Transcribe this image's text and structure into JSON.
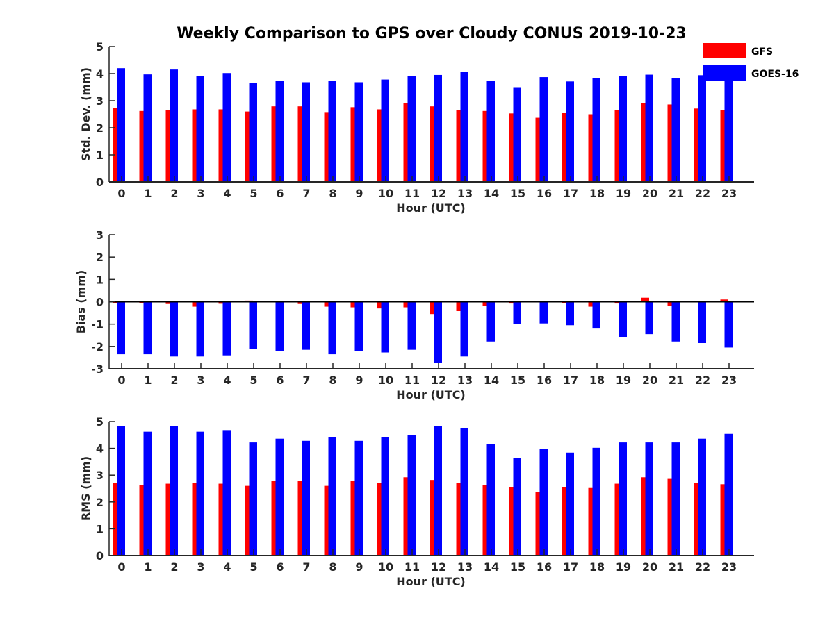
{
  "title": "Weekly Comparison to GPS over Cloudy CONUS 2019-10-23",
  "colors": {
    "GFS": "#ff0000",
    "GOES-16": "#0000ff",
    "axis": "#262626"
  },
  "legend": {
    "placement": "top-right",
    "items": [
      "GFS",
      "GOES-16"
    ]
  },
  "chart_data": [
    {
      "type": "bar",
      "title": "Weekly Comparison to GPS over Cloudy CONUS 2019-10-23",
      "xlabel": "Hour (UTC)",
      "ylabel": "Std. Dev. (mm)",
      "ylim": [
        0,
        5
      ],
      "yticks": [
        0,
        1,
        2,
        3,
        4,
        5
      ],
      "zero_line": false,
      "categories": [
        "0",
        "1",
        "2",
        "3",
        "4",
        "5",
        "6",
        "7",
        "8",
        "9",
        "10",
        "11",
        "12",
        "13",
        "14",
        "15",
        "16",
        "17",
        "18",
        "19",
        "20",
        "21",
        "22",
        "23"
      ],
      "series": [
        {
          "name": "GFS",
          "values": [
            2.72,
            2.62,
            2.66,
            2.68,
            2.68,
            2.6,
            2.79,
            2.79,
            2.58,
            2.76,
            2.68,
            2.92,
            2.79,
            2.66,
            2.62,
            2.53,
            2.37,
            2.56,
            2.5,
            2.66,
            2.92,
            2.86,
            2.71,
            2.66
          ]
        },
        {
          "name": "GOES-16",
          "values": [
            4.2,
            3.97,
            4.15,
            3.92,
            4.02,
            3.65,
            3.74,
            3.68,
            3.74,
            3.68,
            3.78,
            3.92,
            3.95,
            4.07,
            3.73,
            3.5,
            3.87,
            3.71,
            3.84,
            3.92,
            3.96,
            3.82,
            3.94,
            3.87
          ]
        }
      ]
    },
    {
      "type": "bar",
      "title": "",
      "xlabel": "Hour (UTC)",
      "ylabel": "Bias (mm)",
      "ylim": [
        -3,
        3
      ],
      "yticks": [
        -3,
        -2,
        -1,
        0,
        1,
        2,
        3
      ],
      "zero_line": true,
      "categories": [
        "0",
        "1",
        "2",
        "3",
        "4",
        "5",
        "6",
        "7",
        "8",
        "9",
        "10",
        "11",
        "12",
        "13",
        "14",
        "15",
        "16",
        "17",
        "18",
        "19",
        "20",
        "21",
        "22",
        "23"
      ],
      "series": [
        {
          "name": "GFS",
          "values": [
            -0.05,
            -0.06,
            -0.1,
            -0.22,
            -0.09,
            0.05,
            0.0,
            -0.1,
            -0.22,
            -0.25,
            -0.3,
            -0.25,
            -0.55,
            -0.42,
            -0.18,
            -0.08,
            0.0,
            -0.05,
            -0.22,
            -0.08,
            0.18,
            -0.18,
            0.0,
            0.1
          ]
        },
        {
          "name": "GOES-16",
          "values": [
            -2.35,
            -2.35,
            -2.45,
            -2.45,
            -2.4,
            -2.12,
            -2.22,
            -2.15,
            -2.35,
            -2.2,
            -2.27,
            -2.15,
            -2.72,
            -2.45,
            -1.78,
            -1.0,
            -0.97,
            -1.05,
            -1.2,
            -1.57,
            -1.45,
            -1.78,
            -1.85,
            -2.05
          ]
        }
      ]
    },
    {
      "type": "bar",
      "title": "",
      "xlabel": "Hour (UTC)",
      "ylabel": "RMS (mm)",
      "ylim": [
        0,
        5
      ],
      "yticks": [
        0,
        1,
        2,
        3,
        4,
        5
      ],
      "zero_line": false,
      "categories": [
        "0",
        "1",
        "2",
        "3",
        "4",
        "5",
        "6",
        "7",
        "8",
        "9",
        "10",
        "11",
        "12",
        "13",
        "14",
        "15",
        "16",
        "17",
        "18",
        "19",
        "20",
        "21",
        "22",
        "23"
      ],
      "series": [
        {
          "name": "GFS",
          "values": [
            2.7,
            2.62,
            2.68,
            2.7,
            2.68,
            2.6,
            2.78,
            2.78,
            2.6,
            2.78,
            2.7,
            2.92,
            2.82,
            2.7,
            2.62,
            2.55,
            2.38,
            2.55,
            2.52,
            2.68,
            2.92,
            2.86,
            2.7,
            2.66
          ]
        },
        {
          "name": "GOES-16",
          "values": [
            4.82,
            4.62,
            4.84,
            4.62,
            4.68,
            4.22,
            4.36,
            4.28,
            4.42,
            4.28,
            4.42,
            4.5,
            4.82,
            4.76,
            4.16,
            3.65,
            3.98,
            3.84,
            4.02,
            4.22,
            4.22,
            4.22,
            4.36,
            4.54
          ]
        }
      ]
    }
  ]
}
